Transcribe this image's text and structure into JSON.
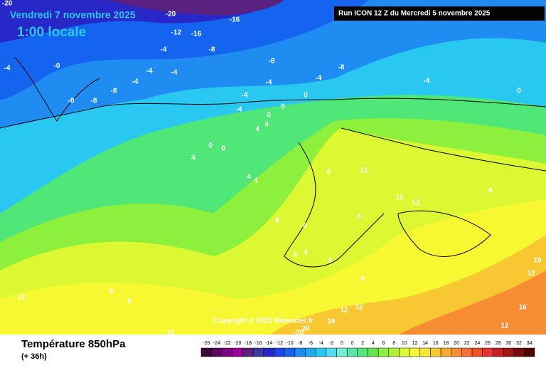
{
  "header": {
    "date": "Vendredi 7 novembre 2025",
    "time": "1:00 locale",
    "run": "Run ICON 12 Z du Mercredi 5 novembre 2025"
  },
  "map": {
    "labels": [
      "-20",
      "-20",
      "-16",
      "-12",
      "-16",
      "-4",
      "-8",
      "-4",
      "-0",
      "-4",
      "-4",
      "-8",
      "-4",
      "-8",
      "-8",
      "-4",
      "-4",
      "-8",
      "-8",
      "-4",
      "-4",
      "0",
      "0",
      "0",
      "4",
      "4",
      "0",
      "0",
      "4",
      "4",
      "4",
      "8",
      "12",
      "12",
      "12",
      "8",
      "8",
      "4",
      "8",
      "4",
      "4",
      "8",
      "8",
      "8",
      "8",
      "12",
      "12",
      "16",
      "12",
      "12",
      "12",
      "16",
      "12",
      "16",
      "20",
      "-20",
      "0",
      "-4"
    ]
  },
  "footer": {
    "title": "Température 850hPa",
    "lead": "(+ 36h)",
    "copyright": "Copyright © 2025 Meteociel.fr"
  },
  "legend": {
    "ticks": [
      "-26",
      "-24",
      "-22",
      "-20",
      "-18",
      "-16",
      "-14",
      "-12",
      "-10",
      "-8",
      "-6",
      "-4",
      "-2",
      "0",
      "0",
      "2",
      "4",
      "6",
      "8",
      "10",
      "12",
      "14",
      "16",
      "18",
      "20",
      "22",
      "24",
      "26",
      "28",
      "30",
      "32",
      "34"
    ],
    "colors": [
      "#40003c",
      "#600060",
      "#800080",
      "#a000a0",
      "#5a2080",
      "#3c3ca0",
      "#2828c8",
      "#1e46e6",
      "#1464f0",
      "#1e8cf0",
      "#1eaaf0",
      "#28c8f0",
      "#50dcf0",
      "#78ecd2",
      "#5ae6aa",
      "#50e678",
      "#64e650",
      "#8cf03c",
      "#b4f032",
      "#dcf832",
      "#f8f832",
      "#f8e632",
      "#f8c832",
      "#f8aa32",
      "#f88c32",
      "#f86e32",
      "#f05028",
      "#e63232",
      "#c81e1e",
      "#a01414",
      "#780a0a",
      "#500000"
    ]
  }
}
